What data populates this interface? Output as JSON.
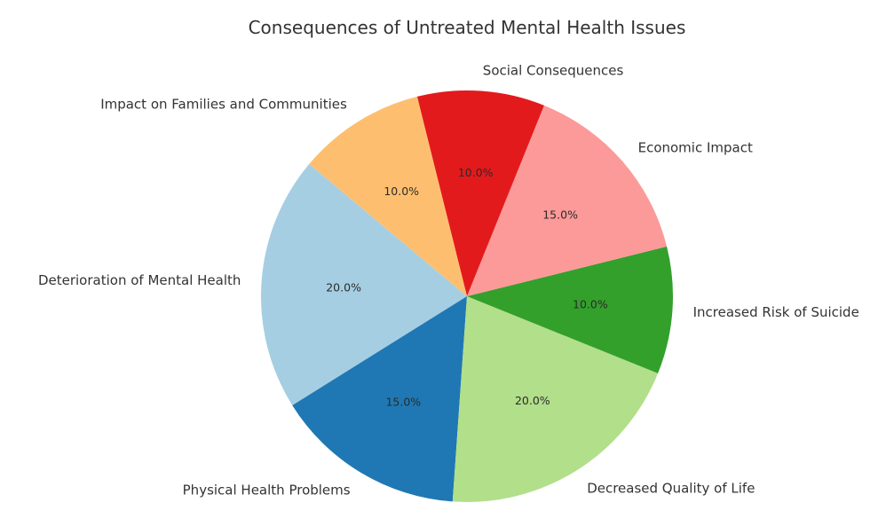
{
  "chart_data": {
    "type": "pie",
    "title": "Consequences of Untreated Mental Health Issues",
    "categories": [
      "Deterioration of Mental Health",
      "Physical Health Problems",
      "Decreased Quality of Life",
      "Increased Risk of Suicide",
      "Economic Impact",
      "Social Consequences",
      "Impact on Families and Communities"
    ],
    "values": [
      20,
      15,
      20,
      10,
      15,
      10,
      10
    ],
    "value_labels": [
      "20.0%",
      "15.0%",
      "20.0%",
      "10.0%",
      "15.0%",
      "10.0%",
      "10.0%"
    ],
    "colors": [
      "#a6cee3",
      "#1f78b4",
      "#b2df8a",
      "#33a02c",
      "#fb9a99",
      "#e31a1c",
      "#fdbf6f"
    ],
    "start_angle_deg": 140,
    "direction": "counterclockwise",
    "legend": "none"
  }
}
